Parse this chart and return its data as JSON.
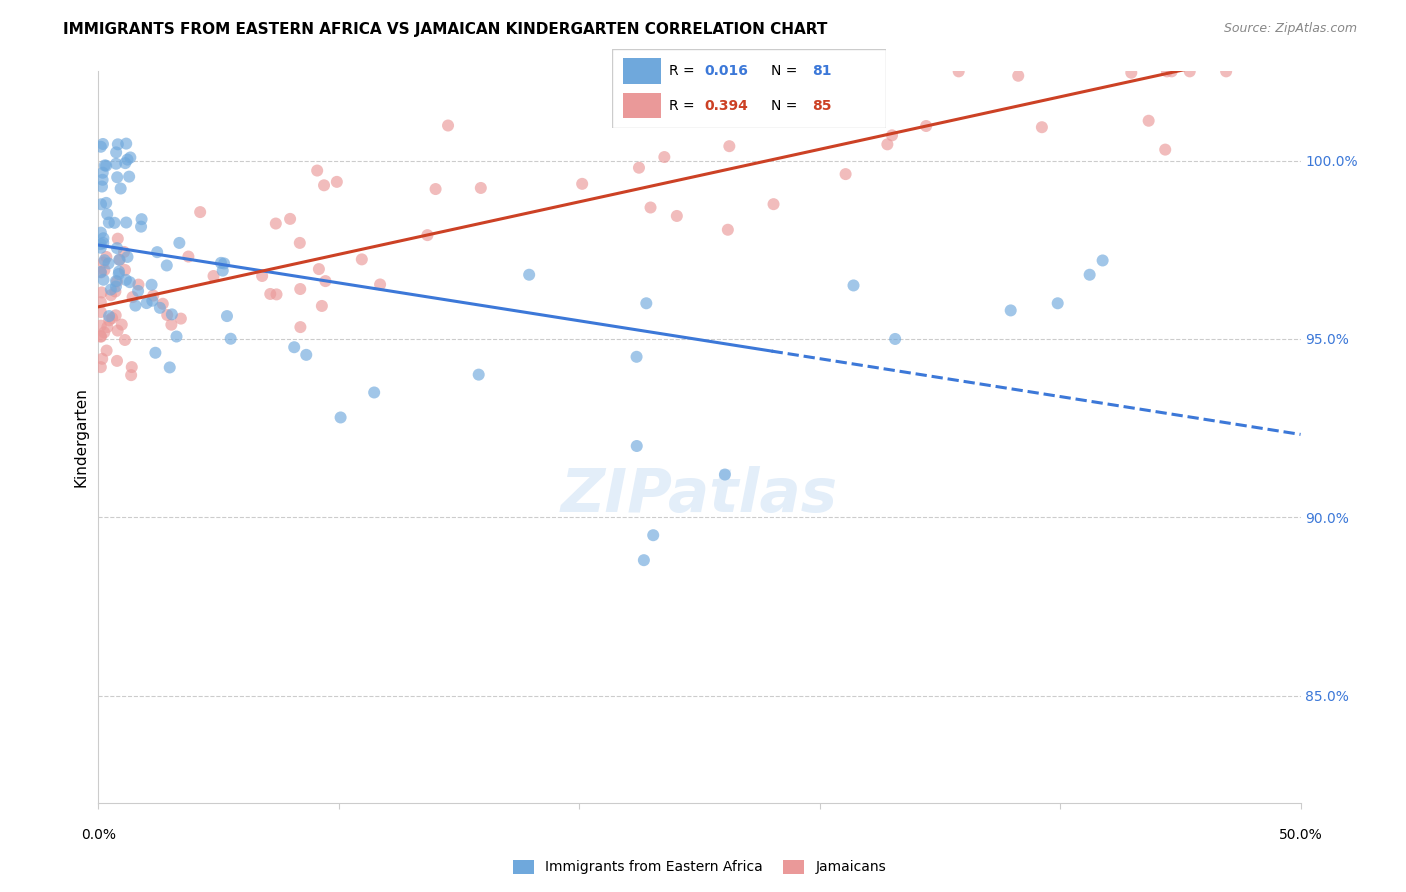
{
  "title": "IMMIGRANTS FROM EASTERN AFRICA VS JAMAICAN KINDERGARTEN CORRELATION CHART",
  "source": "Source: ZipAtlas.com",
  "ylabel": "Kindergarten",
  "ytick_labels": [
    "85.0%",
    "90.0%",
    "95.0%",
    "100.0%"
  ],
  "ytick_values": [
    0.85,
    0.9,
    0.95,
    1.0
  ],
  "xmin": 0.0,
  "xmax": 0.5,
  "ymin": 0.82,
  "ymax": 1.025,
  "blue_R": 0.016,
  "blue_N": 81,
  "pink_R": 0.394,
  "pink_N": 85,
  "blue_color": "#6fa8dc",
  "pink_color": "#ea9999",
  "blue_line_color": "#3c78d8",
  "pink_line_color": "#cc4125",
  "grid_color": "#cccccc",
  "blue_line_solid_end": 0.28,
  "watermark_text": "ZIPatlas",
  "legend_R_blue": "0.016",
  "legend_N_blue": "81",
  "legend_R_pink": "0.394",
  "legend_N_pink": "85",
  "bottom_legend_labels": [
    "Immigrants from Eastern Africa",
    "Jamaicans"
  ]
}
